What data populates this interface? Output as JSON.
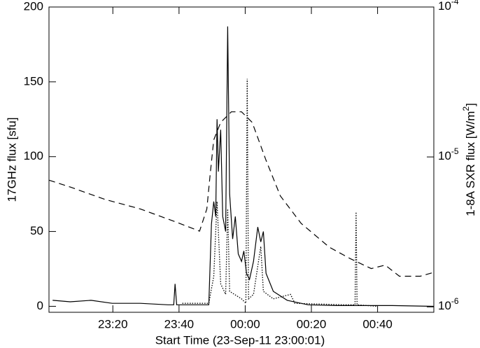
{
  "chart_data": {
    "type": "line",
    "xlabel": "Start Time (23-Sep-11 23:00:01)",
    "ylabel": "17GHz flux [sfu]",
    "y2label": "1-8A SXR flux [W/m^2]",
    "xlim": [
      0.7,
      117
    ],
    "xticks": [
      {
        "value": 20,
        "label": "23:20"
      },
      {
        "value": 40,
        "label": "23:40"
      },
      {
        "value": 60,
        "label": "00:00"
      },
      {
        "value": 80,
        "label": "00:20"
      },
      {
        "value": 100,
        "label": "00:40"
      }
    ],
    "ylim": [
      -4,
      200
    ],
    "yticks": [
      0,
      50,
      100,
      150,
      200
    ],
    "y2lim": [
      9.2e-07,
      0.0001
    ],
    "y2scale": "log",
    "y2ticks": [
      {
        "value": 1e-06,
        "label": "10^-6"
      },
      {
        "value": 1e-05,
        "label": "10^-5"
      },
      {
        "value": 0.0001,
        "label": "10^-4"
      }
    ],
    "series": [
      {
        "color": "#000000",
        "linestyle": "solid",
        "x": [
          1.8,
          7.1,
          13.4,
          19.8,
          28.3,
          36.7,
          38.4,
          38.8,
          39.3,
          41.0,
          49.0,
          49.8,
          50.5,
          51.1,
          51.5,
          51.9,
          52.6,
          53.2,
          54.1,
          54.7,
          55.3,
          56.2,
          57.0,
          57.9,
          58.9,
          59.6,
          60.4,
          61.3,
          62.5,
          63.8,
          64.7,
          65.5,
          66.3,
          68.5,
          72.7,
          79.0,
          87.5,
          104.4,
          117
        ],
        "values": [
          4,
          3,
          4,
          2,
          2,
          1,
          1,
          15,
          1,
          1,
          1,
          55,
          70,
          60,
          125,
          90,
          118,
          60,
          50,
          187,
          75,
          45,
          60,
          35,
          30,
          37,
          22,
          18,
          30,
          53,
          43,
          50,
          22,
          10,
          4,
          1,
          0.5,
          0.5,
          0
        ]
      },
      {
        "color": "#000000",
        "linestyle": "dotted",
        "x": [
          41,
          49,
          50.5,
          51.5,
          52.6,
          54.1,
          54.7,
          55.3,
          58.9,
          60.2,
          60.6,
          61.0,
          62.5,
          64.7,
          65.5,
          68.5,
          73.7,
          75,
          90,
          93.2,
          93.5,
          93.8,
          100
        ],
        "values": [
          2,
          2,
          20,
          70,
          15,
          8,
          65,
          10,
          5,
          2,
          152,
          5,
          8,
          40,
          10,
          5,
          8,
          2,
          1,
          1,
          63,
          1,
          0
        ]
      },
      {
        "color": "#000000",
        "linestyle": "dashed",
        "axis": "y2",
        "x": [
          0.7,
          7.1,
          17.7,
          28.3,
          38.8,
          46.2,
          48.4,
          49.4,
          50.5,
          52.6,
          55.8,
          58.9,
          62.1,
          66.3,
          70.6,
          76.9,
          85.4,
          91.7,
          98.1,
          102.3,
          106.6,
          112.9,
          117
        ],
        "values": [
          7e-06,
          6.3e-06,
          5.2e-06,
          4.5e-06,
          3.7e-06,
          3.2e-06,
          4.5e-06,
          7.6e-06,
          1.3e-05,
          1.7e-05,
          2e-05,
          2e-05,
          1.7e-05,
          9.5e-06,
          5.5e-06,
          3.6e-06,
          2.5e-06,
          2.1e-06,
          1.8e-06,
          1.9e-06,
          1.6e-06,
          1.6e-06,
          1.7e-06
        ]
      }
    ]
  }
}
